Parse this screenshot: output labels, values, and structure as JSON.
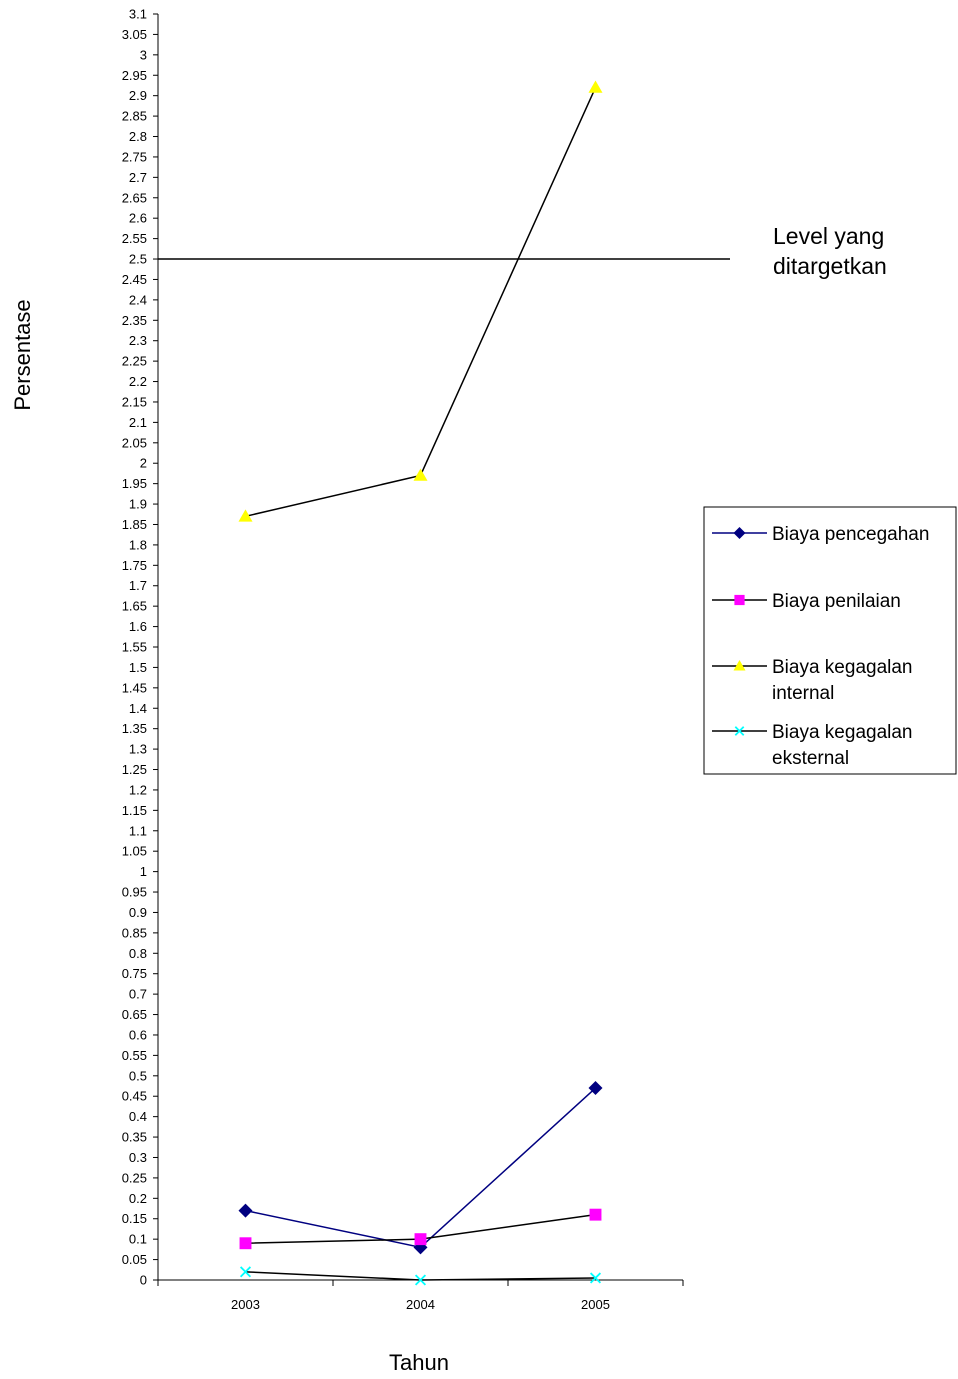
{
  "chart_data": {
    "type": "line",
    "title": "",
    "xlabel": "Tahun",
    "ylabel": "Persentase",
    "categories": [
      "2003",
      "2004",
      "2005"
    ],
    "ylim": [
      0,
      3.1
    ],
    "ytick_step": 0.05,
    "grid": false,
    "legend_position": "right",
    "series": [
      {
        "name": "Biaya pencegahan",
        "values": [
          0.17,
          0.08,
          0.47
        ],
        "color": "#000080",
        "line_color": "#000080",
        "marker": "diamond"
      },
      {
        "name": "Biaya penilaian",
        "values": [
          0.09,
          0.1,
          0.16
        ],
        "color": "#ff00ff",
        "line_color": "#000000",
        "marker": "square"
      },
      {
        "name": "Biaya kegagalan internal",
        "values": [
          1.87,
          1.97,
          2.92
        ],
        "color": "#ffff00",
        "line_color": "#000000",
        "marker": "triangle"
      },
      {
        "name": "Biaya kegagalan eksternal",
        "values": [
          0.02,
          0.0,
          0.005
        ],
        "color": "#00ffff",
        "line_color": "#000000",
        "marker": "x"
      }
    ],
    "reference_line": {
      "value": 2.5,
      "label_line1": "Level yang",
      "label_line2": "ditargetkan"
    }
  }
}
